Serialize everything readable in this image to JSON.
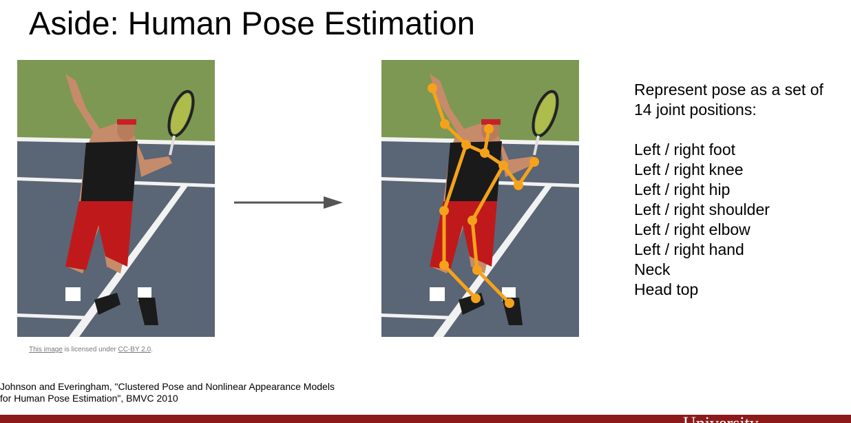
{
  "slide": {
    "title": "Aside: Human Pose Estimation"
  },
  "license": {
    "image_link": "This image",
    "middle": " is licensed under ",
    "cc_link": "CC-BY 2.0",
    "end": "."
  },
  "citation": {
    "line1": "Johnson and Everingham, \"Clustered Pose and Nonlinear Appearance Models",
    "line2": "for Human Pose Estimation\", BMVC 2010"
  },
  "description": {
    "intro": "Represent pose as a set of 14 joint positions:",
    "joints": [
      "Left / right foot",
      "Left / right knee",
      "Left / right hip",
      "Left / right shoulder",
      "Left / right elbow",
      "Left / right hand",
      "Neck",
      "Head top"
    ]
  },
  "footer": {
    "text": "University"
  },
  "colors": {
    "skeleton": "#f5a21b",
    "footer_bar": "#8c1a1a",
    "arrow": "#555555",
    "grass": "#7f9a55",
    "court": "#5b6675"
  }
}
